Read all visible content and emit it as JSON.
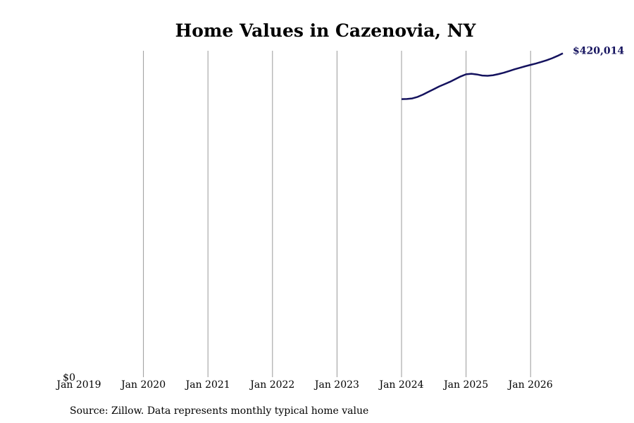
{
  "chart_data": {
    "type": "line",
    "title": "Home Values in Cazenovia, NY",
    "source": "Source: Zillow. Data represents monthly typical home value",
    "x": [
      "2024-01",
      "2024-02",
      "2024-03",
      "2024-04",
      "2024-05",
      "2024-06",
      "2024-07",
      "2024-08",
      "2024-09",
      "2024-10",
      "2024-11",
      "2024-12",
      "2025-01",
      "2025-02",
      "2025-03",
      "2025-04",
      "2025-05",
      "2025-06",
      "2025-07",
      "2025-08",
      "2025-09",
      "2025-10",
      "2025-11",
      "2025-12",
      "2026-01",
      "2026-02",
      "2026-03",
      "2026-04",
      "2026-05",
      "2026-06",
      "2026-07"
    ],
    "series": [
      {
        "color": "#14125e",
        "values": [
          360600,
          360800,
          361500,
          363500,
          366500,
          370000,
          373500,
          377000,
          380000,
          383000,
          386500,
          390000,
          392800,
          393500,
          392600,
          391200,
          390800,
          391500,
          393000,
          394800,
          397000,
          399200,
          401200,
          403200,
          405000,
          406800,
          408800,
          411000,
          413600,
          416600,
          420014
        ],
        "value_labels": [
          null,
          null,
          null,
          null,
          null,
          null,
          null,
          null,
          null,
          null,
          null,
          null,
          null,
          null,
          null,
          null,
          null,
          null,
          null,
          null,
          null,
          null,
          null,
          null,
          null,
          null,
          null,
          null,
          null,
          null,
          "$420,014"
        ]
      }
    ],
    "xlim": [
      "2019-01",
      "2026-07"
    ],
    "xticks": [
      {
        "value": "2019-01",
        "label": "Jan 2019"
      },
      {
        "value": "2020-01",
        "label": "Jan 2020"
      },
      {
        "value": "2021-01",
        "label": "Jan 2021"
      },
      {
        "value": "2022-01",
        "label": "Jan 2022"
      },
      {
        "value": "2023-01",
        "label": "Jan 2023"
      },
      {
        "value": "2024-01",
        "label": "Jan 2024"
      },
      {
        "value": "2025-01",
        "label": "Jan 2025"
      },
      {
        "value": "2026-01",
        "label": "Jan 2026"
      }
    ],
    "ylim": [
      0,
      423300
    ],
    "yticks": [
      {
        "value": 0,
        "label": "$0"
      }
    ],
    "grid": "x"
  }
}
